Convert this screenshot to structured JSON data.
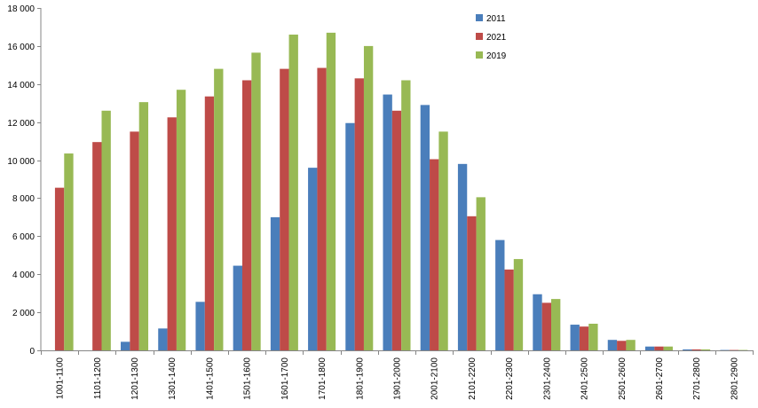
{
  "chart_data": {
    "type": "bar",
    "title": "",
    "xlabel": "",
    "ylabel": "",
    "ylim": [
      0,
      18000
    ],
    "ytick_step": 2000,
    "ytick_labels": [
      "0",
      "2 000",
      "4 000",
      "6 000",
      "8 000",
      "10 000",
      "12 000",
      "14 000",
      "16 000",
      "18 000"
    ],
    "grid": false,
    "legend_position": "top-center",
    "categories": [
      "1001-1100",
      "1101-1200",
      "1201-1300",
      "1301-1400",
      "1401-1500",
      "1501-1600",
      "1601-1700",
      "1701-1800",
      "1801-1900",
      "1901-2000",
      "2001-2100",
      "2101-2200",
      "2201-2300",
      "2301-2400",
      "2401-2500",
      "2501-2600",
      "2601-2700",
      "2701-2800",
      "2801-2900"
    ],
    "series": [
      {
        "name": "2011",
        "color": "#4A7EBB",
        "values": [
          0,
          0,
          450,
          1150,
          2550,
          4450,
          7000,
          9600,
          11950,
          13450,
          12900,
          9800,
          5800,
          2950,
          1350,
          550,
          200,
          50,
          20
        ]
      },
      {
        "name": "2021",
        "color": "#BE4B48",
        "values": [
          8550,
          10950,
          11500,
          12250,
          13350,
          14200,
          14800,
          14850,
          14300,
          12600,
          10050,
          7050,
          4250,
          2500,
          1250,
          500,
          200,
          50,
          20
        ]
      },
      {
        "name": "2019",
        "color": "#98B954",
        "values": [
          10350,
          12600,
          13050,
          13700,
          14800,
          15650,
          16600,
          16700,
          16000,
          14200,
          11500,
          8050,
          4800,
          2700,
          1400,
          550,
          200,
          50,
          20
        ]
      }
    ]
  }
}
